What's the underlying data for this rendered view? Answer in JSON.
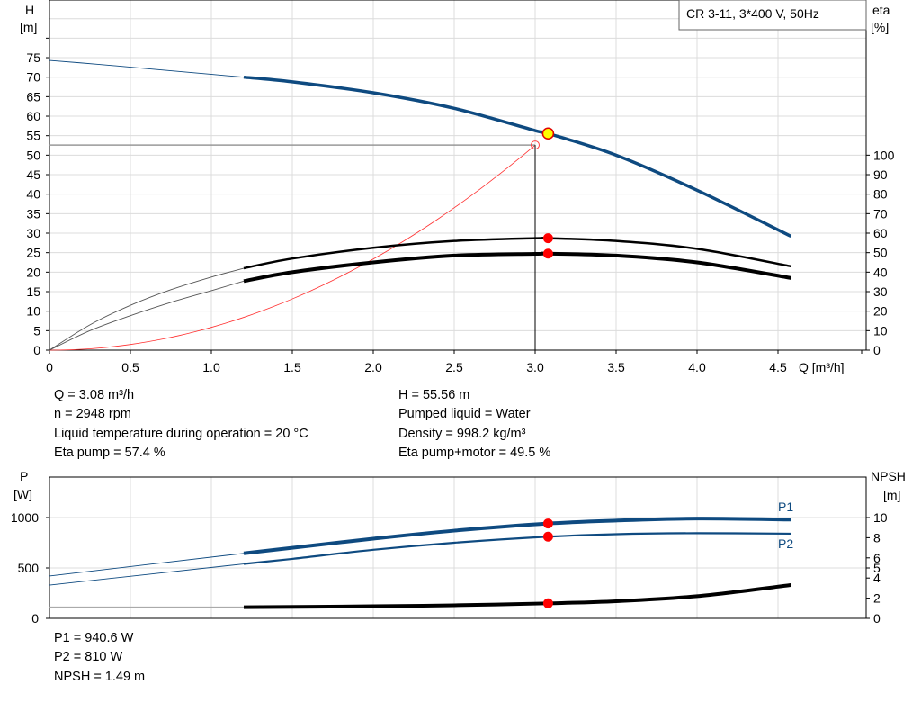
{
  "title": "CR 3-11, 3*400 V, 50Hz",
  "chart_data": [
    {
      "type": "line",
      "xlabel": "Q [m³/h]",
      "ylabel_left": [
        "H",
        "[m]"
      ],
      "ylabel_right": [
        "eta",
        "[%]"
      ],
      "xlim": [
        0,
        5
      ],
      "ylim_left": [
        0,
        90
      ],
      "ylim_right": [
        0,
        100
      ],
      "grid": true,
      "x_ticks": [
        "0",
        "0.5",
        "1.0",
        "1.5",
        "2.0",
        "2.5",
        "3.0",
        "3.5",
        "4.0",
        "4.5"
      ],
      "y_ticks_left": [
        "0",
        "5",
        "10",
        "15",
        "20",
        "25",
        "30",
        "35",
        "40",
        "45",
        "50",
        "55",
        "60",
        "65",
        "70",
        "75"
      ],
      "y_ticks_right": [
        "0",
        "10",
        "20",
        "30",
        "40",
        "50",
        "60",
        "70",
        "80",
        "90",
        "100"
      ],
      "series": [
        {
          "id": "H",
          "axis": "left",
          "color": "#0e4a80",
          "extrapolated": {
            "x": [
              0,
              0.3,
              0.6,
              0.9,
              1.2
            ],
            "y": [
              74.3,
              73.3,
              72.2,
              71.1,
              70
            ]
          },
          "x": [
            1.2,
            1.5,
            2.0,
            2.5,
            3.0,
            3.08,
            3.5,
            4.0,
            4.58
          ],
          "y": [
            70,
            68.8,
            66,
            62,
            56.3,
            55.56,
            50,
            41,
            29.2
          ]
        },
        {
          "id": "eta-pump",
          "axis": "right",
          "color": "#000000",
          "extrapolated": {
            "x": [
              0,
              0.25,
              0.5,
              0.75,
              1.0,
              1.2
            ],
            "y": [
              0,
              13,
              23,
              31,
              37.5,
              42
            ]
          },
          "x": [
            1.2,
            1.5,
            2.0,
            2.5,
            3.0,
            3.08,
            3.5,
            4.0,
            4.58
          ],
          "y": [
            42,
            47,
            52.5,
            56,
            57.4,
            57.4,
            56,
            52,
            43
          ]
        },
        {
          "id": "eta-pump-motor",
          "axis": "right",
          "color": "#000000",
          "extrapolated": {
            "x": [
              0,
              0.25,
              0.5,
              0.75,
              1.0,
              1.2
            ],
            "y": [
              0,
              10,
              17.7,
              24.5,
              30.5,
              35.4
            ]
          },
          "x": [
            1.2,
            1.5,
            2.0,
            2.5,
            3.0,
            3.08,
            3.5,
            4.0,
            4.58
          ],
          "y": [
            35.4,
            40,
            45,
            48.5,
            49.4,
            49.5,
            48.5,
            45,
            37
          ]
        },
        {
          "id": "system-curve",
          "axis": "left",
          "color": "#ff3030",
          "formula_coefficient": 5.84,
          "x_end": 3.0
        }
      ],
      "duty_point": {
        "Q": 3.08,
        "H": 55.56,
        "color": "#ffff00"
      },
      "requested_point": {
        "Q": 3.0,
        "H": 52.6
      },
      "markers": [
        {
          "x": 3.08,
          "y": 57.4,
          "axis": "right"
        },
        {
          "x": 3.08,
          "y": 49.5,
          "axis": "right"
        }
      ]
    },
    {
      "type": "line",
      "ylabel_left": [
        "P",
        "[W]"
      ],
      "ylabel_right": [
        "NPSH",
        "[m]"
      ],
      "xlim": [
        0,
        5
      ],
      "ylim_left": [
        0,
        1400
      ],
      "ylim_right": [
        0,
        14
      ],
      "y_ticks_left": [
        "0",
        "500",
        "1000"
      ],
      "y_ticks_right": [
        "0",
        "2",
        "4",
        "5",
        "6",
        "8",
        "10"
      ],
      "series": [
        {
          "id": "P1",
          "name": "P1",
          "axis": "left",
          "color": "#0e4a80",
          "extrapolated": {
            "x": [
              0,
              1.2
            ],
            "y": [
              420,
              645
            ]
          },
          "x": [
            1.2,
            1.5,
            2.0,
            2.5,
            3.08,
            3.5,
            4.0,
            4.58
          ],
          "y": [
            645,
            700,
            790,
            870,
            940.6,
            970,
            990,
            980
          ]
        },
        {
          "id": "P2",
          "name": "P2",
          "axis": "left",
          "color": "#0e4a80",
          "extrapolated": {
            "x": [
              0,
              1.2
            ],
            "y": [
              330,
              540
            ]
          },
          "x": [
            1.2,
            1.5,
            2.0,
            2.5,
            3.08,
            3.5,
            4.0,
            4.58
          ],
          "y": [
            540,
            590,
            680,
            750,
            810,
            835,
            845,
            840
          ]
        },
        {
          "id": "NPSH",
          "axis": "right",
          "color": "#000000",
          "extrapolated": {
            "x": [
              0,
              1.2
            ],
            "y": [
              1.1,
              1.1
            ]
          },
          "x": [
            1.2,
            2.0,
            2.5,
            3.08,
            3.5,
            4.0,
            4.58
          ],
          "y": [
            1.1,
            1.2,
            1.3,
            1.49,
            1.7,
            2.2,
            3.3
          ]
        }
      ],
      "markers": [
        {
          "x": 3.08,
          "y": 940.6,
          "axis": "left"
        },
        {
          "x": 3.08,
          "y": 810,
          "axis": "left"
        },
        {
          "x": 3.08,
          "y": 1.49,
          "axis": "right"
        }
      ]
    }
  ],
  "info_top_left": [
    "Q = 3.08 m³/h",
    "n = 2948 rpm",
    "Liquid temperature during operation = 20 °C",
    "Eta pump = 57.4 %"
  ],
  "info_top_right": [
    "H = 55.56 m",
    "Pumped liquid = Water",
    "Density = 998.2 kg/m³",
    "Eta pump+motor = 49.5 %"
  ],
  "info_bottom": [
    "P1 = 940.6 W",
    "P2 = 810 W",
    "NPSH = 1.49 m"
  ]
}
